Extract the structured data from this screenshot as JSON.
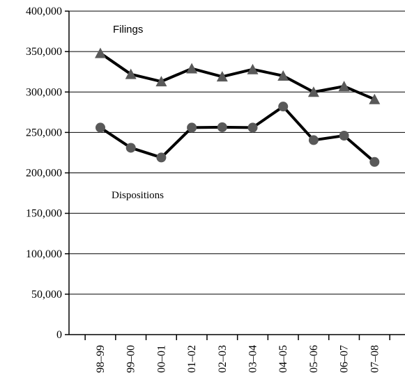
{
  "chart_data": {
    "type": "line",
    "categories": [
      "98–99",
      "99–00",
      "00–01",
      "01–02",
      "02–03",
      "03–04",
      "04–05",
      "05–06",
      "06–07",
      "07–08"
    ],
    "series": [
      {
        "name": "Filings",
        "values": [
          348000,
          322000,
          313000,
          329000,
          319000,
          328000,
          320000,
          300000,
          307000,
          291000
        ],
        "marker": "triangle",
        "color": "#595959"
      },
      {
        "name": "Dispositions",
        "values": [
          256000,
          231000,
          219000,
          256000,
          256500,
          256000,
          282000,
          240500,
          246000,
          213500
        ],
        "marker": "circle",
        "color": "#595959"
      }
    ],
    "title": "",
    "xlabel": "",
    "ylabel": "",
    "ylim": [
      0,
      400000
    ],
    "yticks": [
      0,
      50000,
      100000,
      150000,
      200000,
      250000,
      300000,
      350000,
      400000
    ],
    "ytick_labels": [
      "0",
      "50,000",
      "100,000",
      "150,000",
      "200,000",
      "250,000",
      "300,000",
      "350,000",
      "400,000"
    ],
    "grid": true,
    "legend": "none",
    "annotations": [
      {
        "text": "Filings",
        "series": "Filings"
      },
      {
        "text": "Dispositions",
        "series": "Dispositions"
      }
    ],
    "line_color": "#000000"
  }
}
